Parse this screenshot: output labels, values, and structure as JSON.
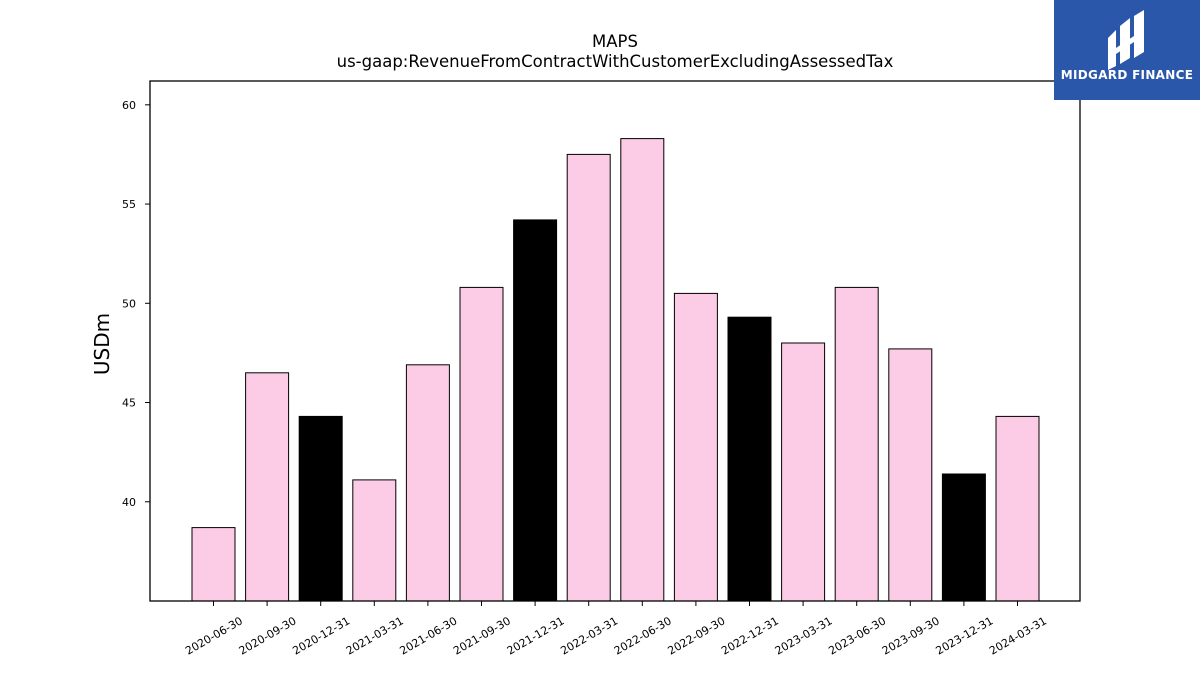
{
  "header": {
    "title": "MAPS",
    "subtitle": "us-gaap:RevenueFromContractWithCustomerExcludingAssessedTax"
  },
  "logo": {
    "text": "MIDGARD FINANCE",
    "background": "#2b57ab"
  },
  "colors": {
    "bar_default": "#fccbe5",
    "bar_highlight": "#000000",
    "bar_edge": "#000000"
  },
  "chart_data": {
    "type": "bar",
    "title": "MAPS",
    "subtitle": "us-gaap:RevenueFromContractWithCustomerExcludingAssessedTax",
    "xlabel": "",
    "ylabel": "USDm",
    "ylim": [
      35,
      61.2
    ],
    "yticks": [
      40,
      45,
      50,
      55,
      60
    ],
    "grid": false,
    "categories": [
      "2020-06-30",
      "2020-09-30",
      "2020-12-31",
      "2021-03-31",
      "2021-06-30",
      "2021-09-30",
      "2021-12-31",
      "2022-03-31",
      "2022-06-30",
      "2022-09-30",
      "2022-12-31",
      "2023-03-31",
      "2023-06-30",
      "2023-09-30",
      "2023-12-31",
      "2024-03-31"
    ],
    "values": [
      38.7,
      46.5,
      44.3,
      41.1,
      46.9,
      50.8,
      54.2,
      57.5,
      58.3,
      50.5,
      49.3,
      48.0,
      50.8,
      47.7,
      41.4,
      44.3
    ],
    "highlight": [
      false,
      false,
      true,
      false,
      false,
      false,
      true,
      false,
      false,
      false,
      true,
      false,
      false,
      false,
      true,
      false
    ]
  }
}
